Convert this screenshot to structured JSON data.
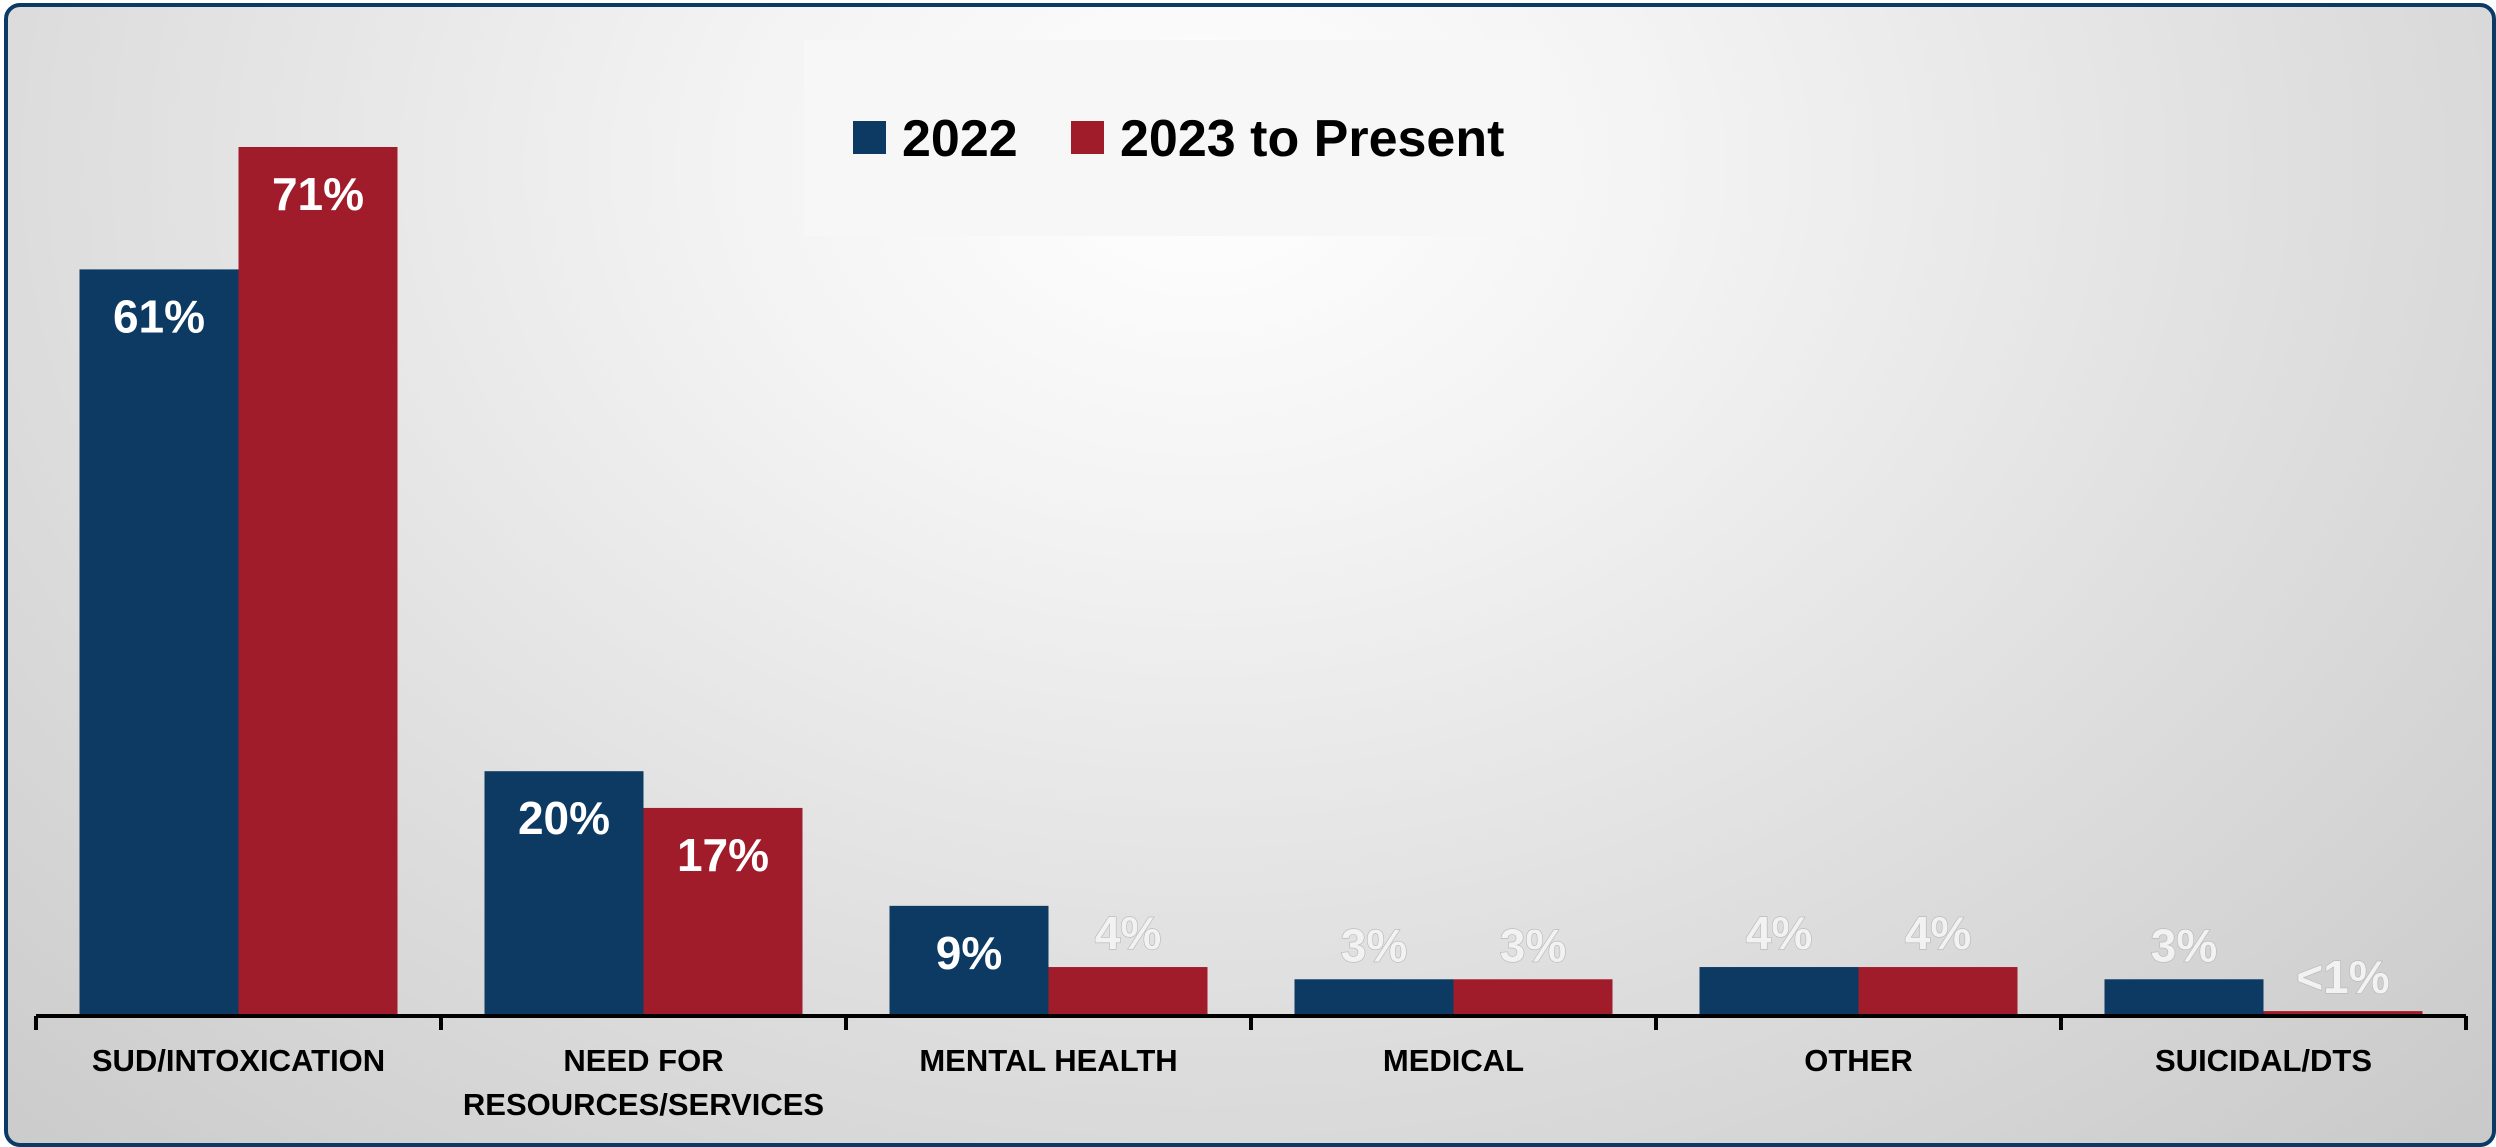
{
  "chart_data": {
    "type": "bar",
    "categories": [
      [
        "SUD/INTOXICATION"
      ],
      [
        "NEED FOR",
        "RESOURCES/SERVICES"
      ],
      [
        "MENTAL HEALTH"
      ],
      [
        "MEDICAL"
      ],
      [
        "OTHER"
      ],
      [
        "SUICIDAL/DTS"
      ]
    ],
    "series": [
      {
        "name": "2022",
        "color": "#0d3a63",
        "values": [
          61,
          20,
          9,
          3,
          4,
          3
        ],
        "labels": [
          "61%",
          "20%",
          "9%",
          "3%",
          "4%",
          "3%"
        ],
        "label_position": [
          "inside",
          "inside",
          "inside",
          "outside",
          "outside",
          "outside"
        ]
      },
      {
        "name": "2023 to Present",
        "color": "#a01c2a",
        "values": [
          71,
          17,
          4,
          3,
          4,
          0.4
        ],
        "labels": [
          "71%",
          "17%",
          "4%",
          "3%",
          "4%",
          "<1%"
        ],
        "label_position": [
          "inside",
          "inside",
          "outside",
          "outside",
          "outside",
          "outside"
        ]
      }
    ],
    "ylim": [
      0,
      71
    ],
    "legend": "top-center",
    "grid": false
  }
}
